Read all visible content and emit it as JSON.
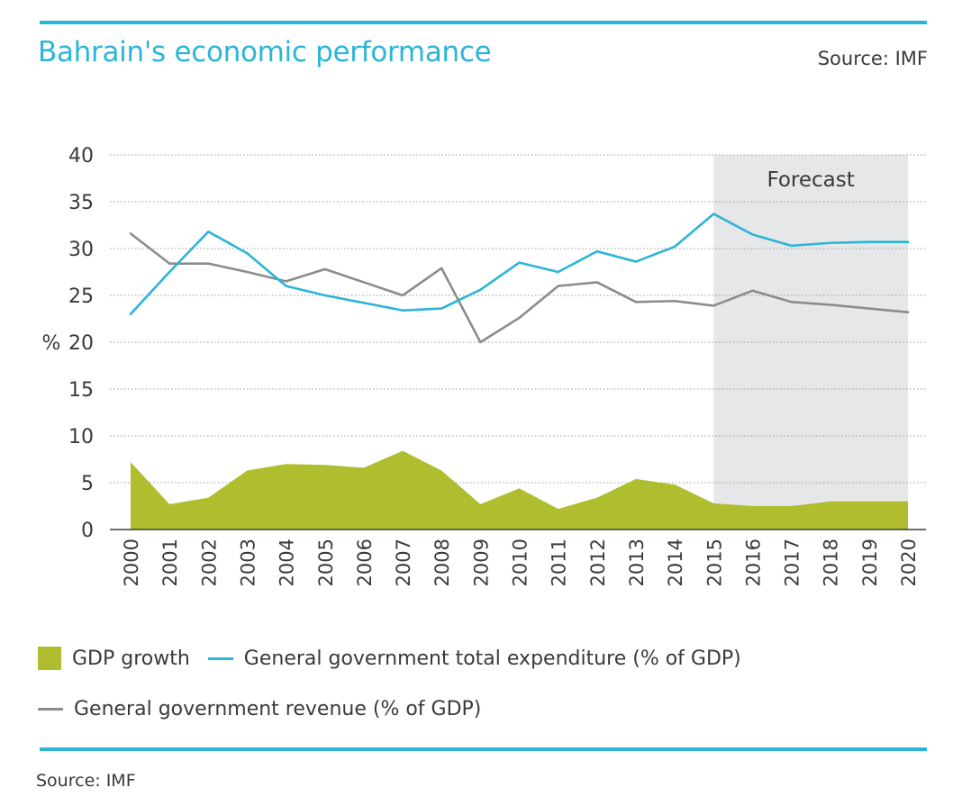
{
  "header": {
    "title": "Bahrain's economic performance",
    "source": "Source: IMF"
  },
  "footer": {
    "source": "Source: IMF"
  },
  "colors": {
    "accent": "#2bb5d6",
    "gdp": "#afbd2f",
    "revenue": "#8c8c8c",
    "forecast_band": "#e6e7e9",
    "text": "#3a3a3a"
  },
  "chart_data": {
    "type": "line",
    "x": [
      "2000",
      "2001",
      "2002",
      "2003",
      "2004",
      "2005",
      "2006",
      "2007",
      "2008",
      "2009",
      "2010",
      "2011",
      "2012",
      "2013",
      "2014",
      "2015",
      "2016",
      "2017",
      "2018",
      "2019",
      "2020"
    ],
    "ylabel": "%",
    "ylim": [
      0,
      40
    ],
    "yticks": [
      0,
      5,
      10,
      15,
      20,
      25,
      30,
      35,
      40
    ],
    "grid": true,
    "forecast": {
      "label": "Forecast",
      "from": "2015",
      "to": "2020"
    },
    "series": [
      {
        "name": "GDP growth",
        "type": "area",
        "values": [
          7.2,
          2.7,
          3.4,
          6.3,
          7.0,
          6.9,
          6.6,
          8.4,
          6.3,
          2.7,
          4.4,
          2.2,
          3.4,
          5.4,
          4.8,
          2.8,
          2.5,
          2.5,
          3.0,
          3.0,
          3.0
        ]
      },
      {
        "name": "General government total expenditure (% of GDP)",
        "type": "line",
        "values": [
          23.0,
          27.5,
          31.8,
          29.5,
          26.0,
          25.0,
          24.2,
          23.4,
          23.6,
          25.6,
          28.5,
          27.5,
          29.7,
          28.6,
          30.2,
          33.7,
          31.5,
          30.3,
          30.6,
          30.7,
          30.7
        ]
      },
      {
        "name": "General government revenue (% of GDP)",
        "type": "line",
        "values": [
          31.6,
          28.4,
          28.4,
          27.5,
          26.5,
          27.8,
          26.4,
          25.0,
          27.9,
          20.0,
          22.6,
          26.0,
          26.4,
          24.3,
          24.4,
          23.9,
          25.5,
          24.3,
          24.0,
          23.6,
          23.2
        ]
      }
    ]
  }
}
